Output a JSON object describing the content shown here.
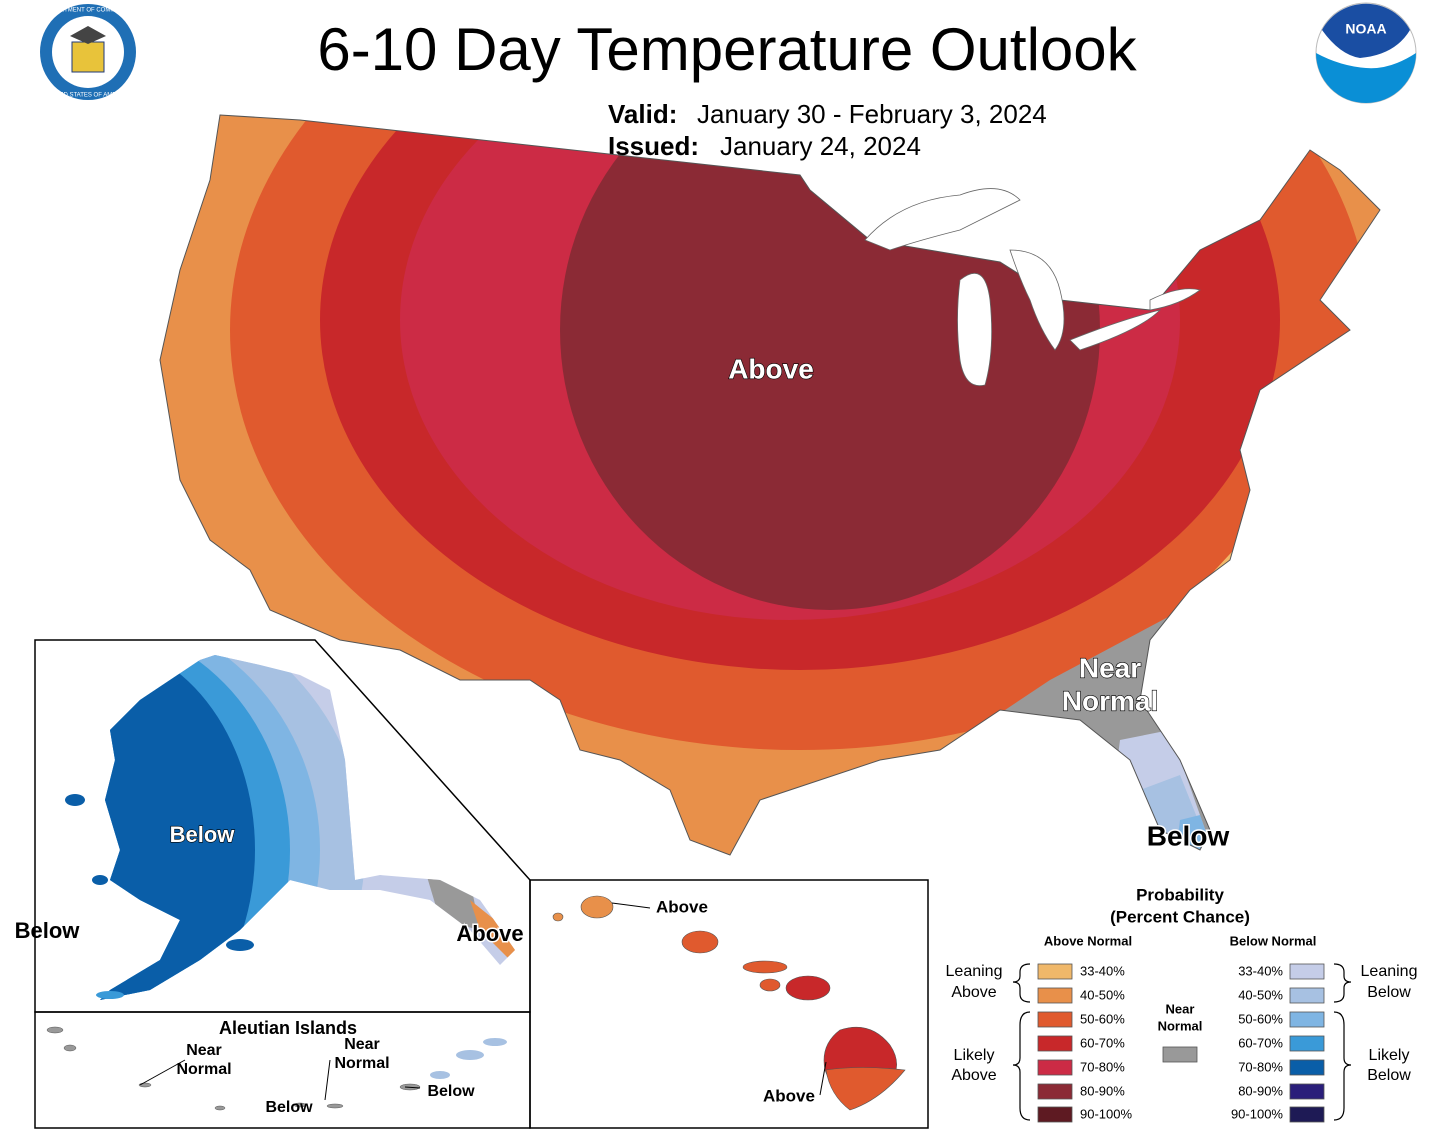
{
  "header": {
    "title": "6-10 Day Temperature Outlook",
    "valid_label": "Valid:",
    "valid": "January 30 - February 3, 2024",
    "issued_label": "Issued:",
    "issued": "January 24, 2024"
  },
  "logos": {
    "commerce_top": "DEPARTMENT OF COMMERCE",
    "commerce_bottom": "UNITED STATES OF AMERICA",
    "noaa": "NOAA"
  },
  "map_labels": {
    "above": "Above",
    "near_normal": [
      "Near",
      "Normal"
    ],
    "below": "Below"
  },
  "alaska": {
    "below_inner": "Below",
    "below_outer": "Below",
    "above": "Above"
  },
  "aleutian": {
    "title": "Aleutian Islands",
    "near_normal_west": [
      "Near",
      "Normal"
    ],
    "near_normal_east": [
      "Near",
      "Normal"
    ],
    "below_west": "Below",
    "below_east": "Below"
  },
  "hawaii": {
    "above_north": "Above",
    "above_south": "Above"
  },
  "legend": {
    "title": [
      "Probability",
      "(Percent Chance)"
    ],
    "above_header": "Above Normal",
    "below_header": "Below Normal",
    "above": [
      {
        "range": "33-40%",
        "color": "#f0b86a"
      },
      {
        "range": "40-50%",
        "color": "#e8904a"
      },
      {
        "range": "50-60%",
        "color": "#e05a2e"
      },
      {
        "range": "60-70%",
        "color": "#c8282a"
      },
      {
        "range": "70-80%",
        "color": "#cc2b45"
      },
      {
        "range": "80-90%",
        "color": "#8b2a35"
      },
      {
        "range": "90-100%",
        "color": "#5e1a22"
      }
    ],
    "below": [
      {
        "range": "33-40%",
        "color": "#c5cde8"
      },
      {
        "range": "40-50%",
        "color": "#a7c1e2"
      },
      {
        "range": "50-60%",
        "color": "#7fb5e3"
      },
      {
        "range": "60-70%",
        "color": "#3a9ad8"
      },
      {
        "range": "70-80%",
        "color": "#0a5ea8"
      },
      {
        "range": "80-90%",
        "color": "#2a1e7a"
      },
      {
        "range": "90-100%",
        "color": "#1e1a55"
      }
    ],
    "near_normal": {
      "label": [
        "Near",
        "Normal"
      ],
      "color": "#999999"
    },
    "leaning_above": [
      "Leaning",
      "Above"
    ],
    "likely_above": [
      "Likely",
      "Above"
    ],
    "leaning_below": [
      "Leaning",
      "Below"
    ],
    "likely_below": [
      "Likely",
      "Below"
    ]
  }
}
